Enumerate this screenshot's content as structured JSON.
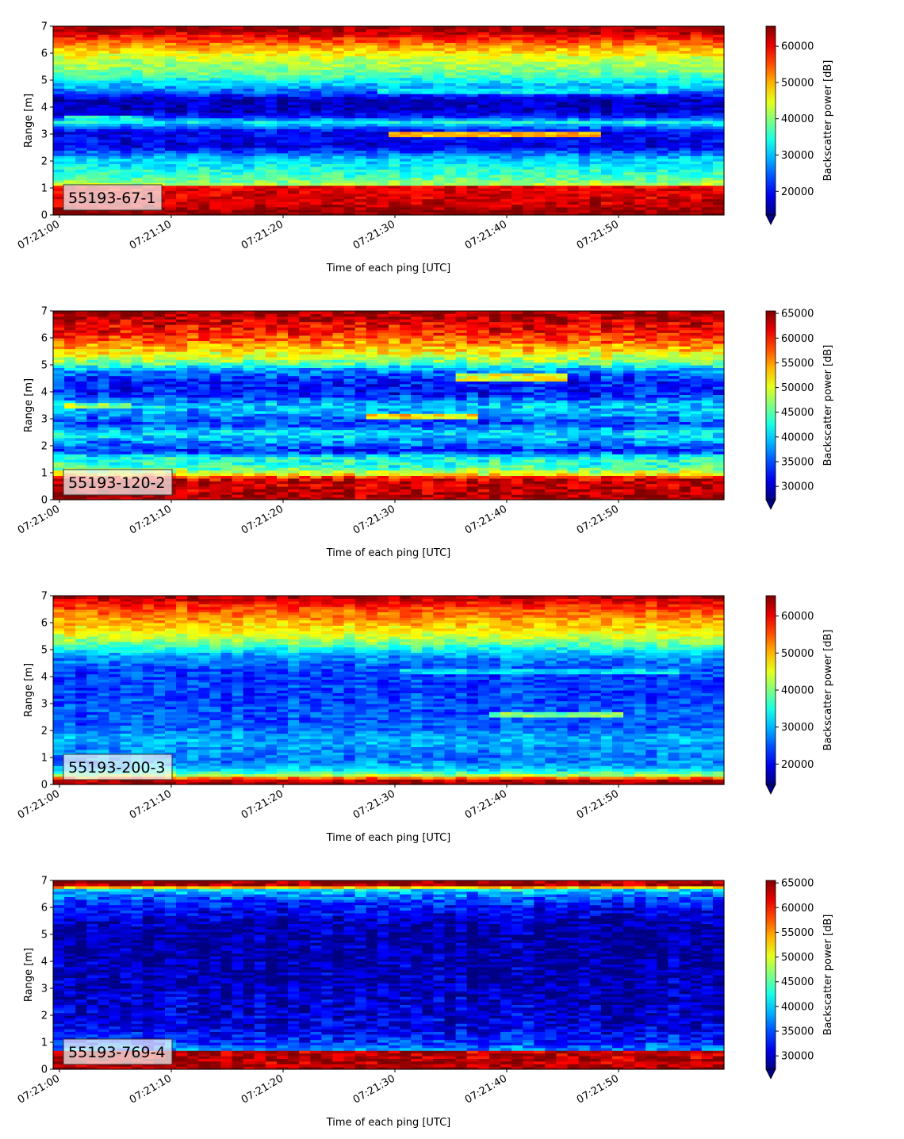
{
  "chart_data": [
    {
      "type": "heatmap",
      "label": "55193-67-1",
      "xlabel": "Time of each ping [UTC]",
      "ylabel": "Range [m]",
      "colorbar_label": "Backscatter power [dB]",
      "colormap": "jet",
      "colorbar_extend": "min",
      "x_ticks": [
        "07:21:00",
        "07:21:10",
        "07:21:20",
        "07:21:30",
        "07:21:40",
        "07:21:50"
      ],
      "y_ticks": [
        "0",
        "1",
        "2",
        "3",
        "4",
        "5",
        "6",
        "7"
      ],
      "ylim": [
        0,
        7
      ],
      "clim": [
        13500,
        65500
      ],
      "colorbar_ticks": [
        20000,
        30000,
        40000,
        50000,
        60000
      ],
      "colorbar_tick_labels": [
        "20000",
        "30000",
        "40000",
        "50000",
        "60000"
      ],
      "profile": {
        "range_m": [
          0.2,
          0.3,
          1.05,
          1.15,
          1.4,
          1.8,
          2.1,
          2.35,
          2.6,
          2.8,
          3.1,
          3.45,
          3.65,
          3.9,
          4.3,
          4.6,
          5.0,
          5.3,
          5.8,
          6.2,
          6.6,
          6.85,
          7.0
        ],
        "value": [
          65000,
          62000,
          60000,
          42000,
          37000,
          33000,
          30000,
          24000,
          18000,
          20000,
          19000,
          33000,
          22000,
          17000,
          17000,
          26000,
          33000,
          39000,
          43000,
          50000,
          58000,
          63000,
          65000
        ]
      },
      "features": [
        {
          "range_m": 3.55,
          "from": "07:21:00",
          "to": "07:21:07",
          "value": 33000
        },
        {
          "range_m": 3.0,
          "from": "07:21:29",
          "to": "07:21:48",
          "value": 50000
        },
        {
          "range_m": 4.6,
          "from": "07:21:28",
          "to": "07:21:54",
          "value": 32000
        }
      ]
    },
    {
      "type": "heatmap",
      "label": "55193-120-2",
      "xlabel": "Time of each ping [UTC]",
      "ylabel": "Range [m]",
      "colorbar_label": "Backscatter power [dB]",
      "colormap": "jet",
      "colorbar_extend": "min",
      "x_ticks": [
        "07:21:00",
        "07:21:10",
        "07:21:20",
        "07:21:30",
        "07:21:40",
        "07:21:50"
      ],
      "y_ticks": [
        "0",
        "1",
        "2",
        "3",
        "4",
        "5",
        "6",
        "7"
      ],
      "ylim": [
        0,
        7
      ],
      "clim": [
        27300,
        65500
      ],
      "colorbar_ticks": [
        30000,
        35000,
        40000,
        45000,
        50000,
        55000,
        60000,
        65000
      ],
      "colorbar_tick_labels": [
        "30000",
        "35000",
        "40000",
        "45000",
        "50000",
        "55000",
        "60000",
        "65000"
      ],
      "profile": {
        "range_m": [
          0.2,
          0.8,
          0.95,
          1.2,
          1.6,
          1.8,
          2.1,
          2.5,
          2.8,
          3.1,
          3.5,
          3.9,
          4.4,
          4.8,
          5.1,
          5.5,
          5.9,
          6.2,
          6.6,
          6.85,
          7.0
        ],
        "value": [
          64000,
          62000,
          52000,
          44000,
          42000,
          33000,
          37000,
          41000,
          34000,
          37000,
          40000,
          33000,
          33000,
          37000,
          46000,
          52000,
          57000,
          60000,
          62000,
          64000,
          65000
        ]
      },
      "features": [
        {
          "range_m": 3.5,
          "from": "07:21:00",
          "to": "07:21:06",
          "value": 47000
        },
        {
          "range_m": 3.1,
          "from": "07:21:27",
          "to": "07:21:37",
          "value": 52000
        },
        {
          "range_m": 4.55,
          "from": "07:21:35",
          "to": "07:21:45",
          "value": 50000
        }
      ]
    },
    {
      "type": "heatmap",
      "label": "55193-200-3",
      "xlabel": "Time of each ping [UTC]",
      "ylabel": "Range [m]",
      "colorbar_label": "Backscatter power [dB]",
      "colormap": "jet",
      "colorbar_extend": "min",
      "x_ticks": [
        "07:21:00",
        "07:21:10",
        "07:21:20",
        "07:21:30",
        "07:21:40",
        "07:21:50"
      ],
      "y_ticks": [
        "0",
        "1",
        "2",
        "3",
        "4",
        "5",
        "6",
        "7"
      ],
      "ylim": [
        0,
        7
      ],
      "clim": [
        14500,
        65500
      ],
      "colorbar_ticks": [
        20000,
        30000,
        40000,
        50000,
        60000
      ],
      "colorbar_tick_labels": [
        "20000",
        "30000",
        "40000",
        "50000",
        "60000"
      ],
      "profile": {
        "range_m": [
          0.1,
          0.2,
          0.35,
          0.6,
          0.9,
          1.3,
          1.7,
          2.2,
          2.8,
          3.3,
          3.8,
          4.3,
          4.8,
          5.1,
          5.5,
          6.0,
          6.5,
          6.8,
          7.0
        ],
        "value": [
          64000,
          60000,
          42000,
          30000,
          27000,
          28000,
          30000,
          25000,
          25000,
          24000,
          24000,
          24000,
          29000,
          36000,
          44000,
          50000,
          55000,
          60000,
          64000
        ]
      },
      "features": [
        {
          "range_m": 2.6,
          "from": "07:21:38",
          "to": "07:21:50",
          "value": 40000
        },
        {
          "range_m": 4.2,
          "from": "07:21:30",
          "to": "07:21:55",
          "value": 32000
        }
      ]
    },
    {
      "type": "heatmap",
      "label": "55193-769-4",
      "xlabel": "Time of each ping [UTC]",
      "ylabel": "Range [m]",
      "colorbar_label": "Backscatter power [dB]",
      "colormap": "jet",
      "colorbar_extend": "min",
      "x_ticks": [
        "07:21:00",
        "07:21:10",
        "07:21:20",
        "07:21:30",
        "07:21:40",
        "07:21:50"
      ],
      "y_ticks": [
        "0",
        "1",
        "2",
        "3",
        "4",
        "5",
        "6",
        "7"
      ],
      "ylim": [
        0,
        7
      ],
      "clim": [
        27300,
        65500
      ],
      "colorbar_ticks": [
        30000,
        35000,
        40000,
        45000,
        50000,
        55000,
        60000,
        65000
      ],
      "colorbar_tick_labels": [
        "30000",
        "35000",
        "40000",
        "45000",
        "50000",
        "55000",
        "60000",
        "65000"
      ],
      "profile": {
        "range_m": [
          0.2,
          0.65,
          0.75,
          1.0,
          1.5,
          2.0,
          3.0,
          4.0,
          5.0,
          5.6,
          6.1,
          6.5,
          6.7,
          6.8,
          7.0
        ],
        "value": [
          64000,
          63000,
          37000,
          34000,
          31000,
          30500,
          29500,
          29000,
          28500,
          30000,
          33000,
          37000,
          42000,
          64000,
          65000
        ]
      },
      "features": []
    }
  ]
}
